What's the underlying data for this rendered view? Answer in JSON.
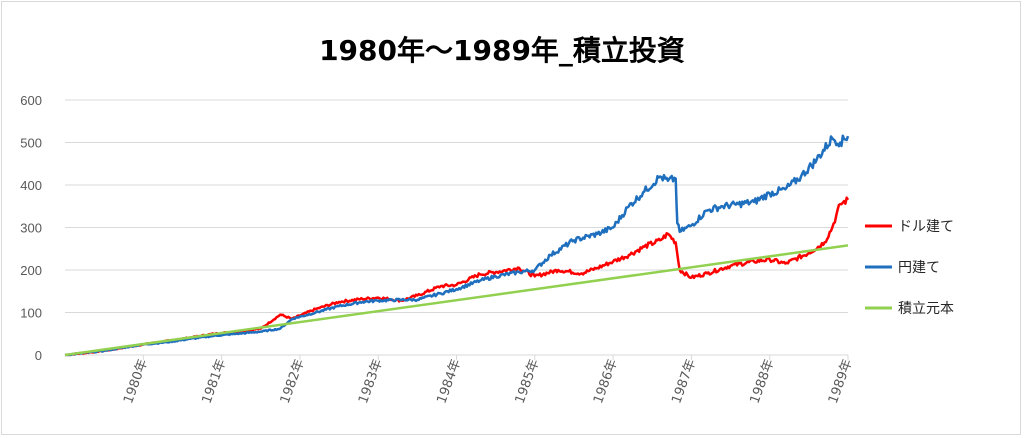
{
  "chart_data": {
    "type": "line",
    "title": "1980年～1989年_積立投資",
    "xlabel": "",
    "ylabel": "",
    "ylim": [
      0,
      600
    ],
    "yticks": [
      0,
      100,
      200,
      300,
      400,
      500,
      600
    ],
    "xlim": [
      1979.0,
      1989.0
    ],
    "xticks": [
      1980,
      1981,
      1982,
      1983,
      1984,
      1985,
      1986,
      1987,
      1988,
      1989
    ],
    "xtick_labels": [
      "1980年",
      "1981年",
      "1982年",
      "1983年",
      "1984年",
      "1985年",
      "1986年",
      "1987年",
      "1988年",
      "1989年"
    ],
    "grid": "horizontal",
    "legend_position": "right",
    "series": [
      {
        "name": "ドル建て",
        "color": "#ff0000",
        "x": [
          1979.0,
          1979.5,
          1980.0,
          1980.5,
          1980.9,
          1981.2,
          1981.5,
          1981.75,
          1981.9,
          1982.2,
          1982.5,
          1982.8,
          1983.0,
          1983.3,
          1983.5,
          1983.8,
          1984.0,
          1984.3,
          1984.5,
          1984.8,
          1985.0,
          1985.3,
          1985.6,
          1985.8,
          1986.0,
          1986.2,
          1986.4,
          1986.6,
          1986.7,
          1986.8,
          1986.85,
          1987.0,
          1987.2,
          1987.5,
          1987.8,
          1988.0,
          1988.2,
          1988.5,
          1988.7,
          1988.8,
          1988.9,
          1989.0
        ],
        "y": [
          0,
          10,
          25,
          38,
          50,
          55,
          62,
          95,
          85,
          108,
          125,
          132,
          135,
          128,
          140,
          162,
          165,
          190,
          195,
          205,
          185,
          200,
          192,
          205,
          220,
          235,
          255,
          270,
          285,
          265,
          200,
          182,
          192,
          210,
          220,
          225,
          215,
          240,
          265,
          300,
          355,
          365
        ]
      },
      {
        "name": "円建て",
        "color": "#1f6fbf",
        "x": [
          1979.0,
          1979.5,
          1980.0,
          1980.3,
          1980.6,
          1980.9,
          1981.2,
          1981.5,
          1981.75,
          1981.9,
          1982.2,
          1982.5,
          1982.8,
          1983.0,
          1983.3,
          1983.5,
          1983.8,
          1984.0,
          1984.3,
          1984.5,
          1984.8,
          1985.0,
          1985.2,
          1985.5,
          1985.8,
          1986.0,
          1986.2,
          1986.4,
          1986.6,
          1986.7,
          1986.8,
          1986.82,
          1986.85,
          1987.0,
          1987.2,
          1987.4,
          1987.6,
          1987.8,
          1988.0,
          1988.2,
          1988.4,
          1988.6,
          1988.8,
          1988.9,
          1989.0
        ],
        "y": [
          0,
          10,
          25,
          30,
          38,
          45,
          50,
          55,
          62,
          85,
          100,
          115,
          125,
          128,
          130,
          130,
          145,
          155,
          175,
          185,
          195,
          200,
          235,
          270,
          285,
          300,
          350,
          385,
          420,
          410,
          415,
          310,
          290,
          305,
          340,
          350,
          355,
          360,
          380,
          390,
          420,
          460,
          510,
          500,
          515
        ]
      },
      {
        "name": "積立元本",
        "color": "#92d050",
        "x": [
          1979.0,
          1989.0
        ],
        "y": [
          0,
          258
        ]
      }
    ]
  }
}
